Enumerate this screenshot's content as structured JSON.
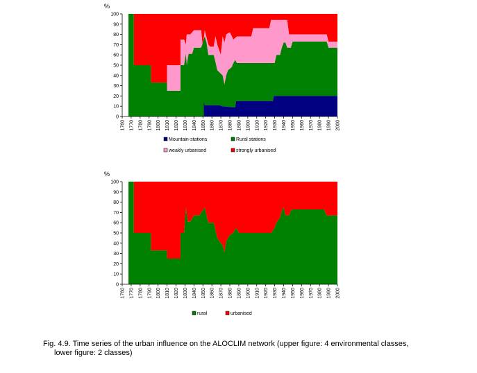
{
  "caption": {
    "line1": "Fig. 4.9.  Time series of the urban influence on the ALOCLIM network (upper figure: 4 environmental classes,",
    "line2": "lower figure: 2 classes)"
  },
  "chart_data": [
    {
      "type": "area",
      "stacked": true,
      "title": "",
      "ylabel": "%",
      "xlabel": "",
      "xlim": [
        1760,
        2000
      ],
      "ylim": [
        0,
        100
      ],
      "grid": false,
      "legend_position": "bottom",
      "x_ticks": [
        1760,
        1770,
        1780,
        1790,
        1800,
        1810,
        1820,
        1830,
        1840,
        1850,
        1860,
        1870,
        1880,
        1890,
        1900,
        1910,
        1920,
        1930,
        1940,
        1950,
        1960,
        1970,
        1980,
        1990,
        2000
      ],
      "y_ticks": [
        0,
        10,
        20,
        30,
        40,
        50,
        60,
        70,
        80,
        90,
        100
      ],
      "series": [
        {
          "name": "Mountain-stations",
          "color": "#000080",
          "points": [
            [
              1767,
              0
            ],
            [
              1851,
              0
            ],
            [
              1851,
              15
            ],
            [
              1852,
              11
            ],
            [
              1860,
              11
            ],
            [
              1868,
              11
            ],
            [
              1872,
              10
            ],
            [
              1882,
              9
            ],
            [
              1886,
              9
            ],
            [
              1887,
              15
            ],
            [
              1928,
              15
            ],
            [
              1929,
              20
            ],
            [
              2000,
              20
            ]
          ]
        },
        {
          "name": "Rural stations",
          "color": "#008000",
          "points": [
            [
              1767,
              100
            ],
            [
              1773,
              100
            ],
            [
              1773,
              50
            ],
            [
              1792,
              50
            ],
            [
              1792,
              33
            ],
            [
              1810,
              33
            ],
            [
              1810,
              25
            ],
            [
              1825,
              25
            ],
            [
              1825,
              50
            ],
            [
              1829,
              50
            ],
            [
              1831,
              61
            ],
            [
              1832,
              50
            ],
            [
              1834,
              61
            ],
            [
              1838,
              61
            ],
            [
              1840,
              67
            ],
            [
              1848,
              67
            ],
            [
              1850,
              72
            ],
            [
              1852,
              78
            ],
            [
              1854,
              72
            ],
            [
              1856,
              60
            ],
            [
              1862,
              60
            ],
            [
              1864,
              53
            ],
            [
              1866,
              45
            ],
            [
              1872,
              40
            ],
            [
              1874,
              31
            ],
            [
              1876,
              40
            ],
            [
              1878,
              45
            ],
            [
              1882,
              48
            ],
            [
              1884,
              52
            ],
            [
              1886,
              55
            ],
            [
              1888,
              52
            ],
            [
              1930,
              52
            ],
            [
              1932,
              60
            ],
            [
              1936,
              60
            ],
            [
              1938,
              67
            ],
            [
              1940,
              72
            ],
            [
              1942,
              72
            ],
            [
              1944,
              67
            ],
            [
              1948,
              67
            ],
            [
              1950,
              73
            ],
            [
              1988,
              73
            ],
            [
              1990,
              67
            ],
            [
              2000,
              67
            ]
          ]
        },
        {
          "name": "weakly urbanised",
          "color": "#ff99cc",
          "points": [
            [
              1767,
              100
            ],
            [
              1773,
              100
            ],
            [
              1773,
              50
            ],
            [
              1792,
              50
            ],
            [
              1792,
              33
            ],
            [
              1810,
              33
            ],
            [
              1810,
              50
            ],
            [
              1825,
              50
            ],
            [
              1825,
              75
            ],
            [
              1829,
              75
            ],
            [
              1831,
              70
            ],
            [
              1832,
              80
            ],
            [
              1836,
              80
            ],
            [
              1840,
              84
            ],
            [
              1848,
              84
            ],
            [
              1850,
              67
            ],
            [
              1852,
              84
            ],
            [
              1856,
              70
            ],
            [
              1858,
              68
            ],
            [
              1862,
              68
            ],
            [
              1864,
              78
            ],
            [
              1866,
              70
            ],
            [
              1870,
              60
            ],
            [
              1872,
              78
            ],
            [
              1874,
              72
            ],
            [
              1876,
              80
            ],
            [
              1880,
              82
            ],
            [
              1884,
              75
            ],
            [
              1888,
              78
            ],
            [
              1896,
              78
            ],
            [
              1904,
              78
            ],
            [
              1906,
              86
            ],
            [
              1920,
              86
            ],
            [
              1924,
              86
            ],
            [
              1926,
              94
            ],
            [
              1944,
              94
            ],
            [
              1946,
              80
            ],
            [
              1988,
              80
            ],
            [
              1990,
              73
            ],
            [
              2000,
              73
            ]
          ]
        },
        {
          "name": "strongly urbanised",
          "color": "#ff0000",
          "points": [
            [
              1767,
              100
            ],
            [
              2000,
              100
            ]
          ]
        }
      ]
    },
    {
      "type": "area",
      "stacked": true,
      "title": "",
      "ylabel": "%",
      "xlabel": "",
      "xlim": [
        1760,
        2000
      ],
      "ylim": [
        0,
        100
      ],
      "grid": false,
      "legend_position": "bottom",
      "x_ticks": [
        1760,
        1770,
        1780,
        1790,
        1800,
        1810,
        1820,
        1830,
        1840,
        1850,
        1860,
        1870,
        1880,
        1890,
        1900,
        1910,
        1920,
        1930,
        1940,
        1950,
        1960,
        1970,
        1980,
        1990,
        2000
      ],
      "y_ticks": [
        0,
        10,
        20,
        30,
        40,
        50,
        60,
        70,
        80,
        90,
        100
      ],
      "series": [
        {
          "name": "rural",
          "color": "#008000",
          "points": [
            [
              1767,
              100
            ],
            [
              1773,
              100
            ],
            [
              1773,
              50
            ],
            [
              1792,
              50
            ],
            [
              1792,
              33
            ],
            [
              1810,
              33
            ],
            [
              1810,
              25
            ],
            [
              1825,
              25
            ],
            [
              1825,
              50
            ],
            [
              1829,
              50
            ],
            [
              1831,
              75
            ],
            [
              1833,
              61
            ],
            [
              1836,
              61
            ],
            [
              1840,
              67
            ],
            [
              1846,
              67
            ],
            [
              1848,
              70
            ],
            [
              1850,
              72
            ],
            [
              1852,
              75
            ],
            [
              1854,
              67
            ],
            [
              1856,
              60
            ],
            [
              1862,
              60
            ],
            [
              1866,
              45
            ],
            [
              1870,
              40
            ],
            [
              1872,
              38
            ],
            [
              1874,
              31
            ],
            [
              1876,
              42
            ],
            [
              1880,
              48
            ],
            [
              1884,
              50
            ],
            [
              1886,
              54
            ],
            [
              1888,
              54
            ],
            [
              1890,
              50
            ],
            [
              1926,
              50
            ],
            [
              1930,
              55
            ],
            [
              1932,
              60
            ],
            [
              1936,
              65
            ],
            [
              1938,
              72
            ],
            [
              1940,
              75
            ],
            [
              1942,
              67
            ],
            [
              1946,
              67
            ],
            [
              1948,
              72
            ],
            [
              1950,
              73
            ],
            [
              1985,
              73
            ],
            [
              1988,
              67
            ],
            [
              2000,
              67
            ]
          ]
        },
        {
          "name": "urbanised",
          "color": "#ff0000",
          "points": [
            [
              1767,
              100
            ],
            [
              2000,
              100
            ]
          ]
        }
      ]
    }
  ]
}
